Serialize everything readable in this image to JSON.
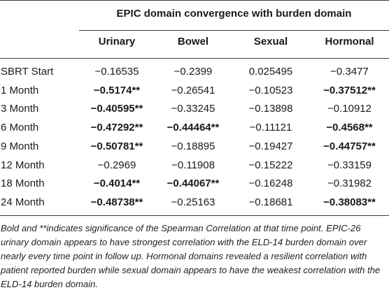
{
  "table": {
    "group_header": "EPIC domain convergence with burden domain",
    "columns": [
      "Urinary",
      "Bowel",
      "Sexual",
      "Hormonal"
    ],
    "rows": [
      {
        "label": "SBRT Start",
        "cells": [
          {
            "value": "−0.16535",
            "significant": false
          },
          {
            "value": "−0.2399",
            "significant": false
          },
          {
            "value": "0.025495",
            "significant": false
          },
          {
            "value": "−0.3477",
            "significant": false
          }
        ]
      },
      {
        "label": "1 Month",
        "cells": [
          {
            "value": "−0.5174**",
            "significant": true
          },
          {
            "value": "−0.26541",
            "significant": false
          },
          {
            "value": "−0.10523",
            "significant": false
          },
          {
            "value": "−0.37512**",
            "significant": true
          }
        ]
      },
      {
        "label": "3 Month",
        "cells": [
          {
            "value": "−0.40595**",
            "significant": true
          },
          {
            "value": "−0.33245",
            "significant": false
          },
          {
            "value": "−0.13898",
            "significant": false
          },
          {
            "value": "−0.10912",
            "significant": false
          }
        ]
      },
      {
        "label": "6 Month",
        "cells": [
          {
            "value": "−0.47292**",
            "significant": true
          },
          {
            "value": "−0.44464**",
            "significant": true
          },
          {
            "value": "−0.11121",
            "significant": false
          },
          {
            "value": "−0.4568**",
            "significant": true
          }
        ]
      },
      {
        "label": "9 Month",
        "cells": [
          {
            "value": "−0.50781**",
            "significant": true
          },
          {
            "value": "−0.18895",
            "significant": false
          },
          {
            "value": "−0.19427",
            "significant": false
          },
          {
            "value": "−0.44757**",
            "significant": true
          }
        ]
      },
      {
        "label": "12 Month",
        "cells": [
          {
            "value": "−0.2969",
            "significant": false
          },
          {
            "value": "−0.11908",
            "significant": false
          },
          {
            "value": "−0.15222",
            "significant": false
          },
          {
            "value": "−0.33159",
            "significant": false
          }
        ]
      },
      {
        "label": "18 Month",
        "cells": [
          {
            "value": "−0.4014**",
            "significant": true
          },
          {
            "value": "−0.44067**",
            "significant": true
          },
          {
            "value": "−0.16248",
            "significant": false
          },
          {
            "value": "−0.31982",
            "significant": false
          }
        ]
      },
      {
        "label": "24 Month",
        "cells": [
          {
            "value": "−0.48738**",
            "significant": true
          },
          {
            "value": "−0.25163",
            "significant": false
          },
          {
            "value": "−0.18681",
            "significant": false
          },
          {
            "value": "−0.38083**",
            "significant": true
          }
        ]
      }
    ]
  },
  "footnote": "Bold and **indicates significance of the Spearman Correlation at that time point. EPIC-26 urinary domain appears to have strongest correlation with the ELD-14 burden domain over nearly every time point in follow up. Hormonal domains revealed a resilient correlation with patient reported burden while sexual domain appears to have the weakest correlation with the ELD-14 burden domain."
}
